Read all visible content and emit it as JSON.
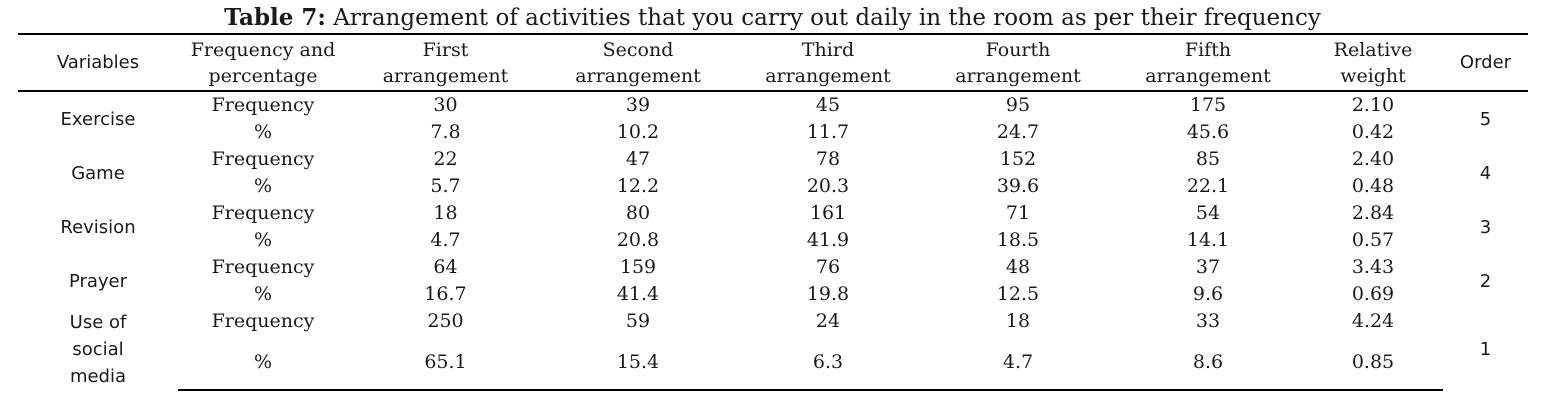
{
  "caption": {
    "label": "Table 7:",
    "text": "Arrangement of activities that you carry out daily in the room as per their frequency"
  },
  "headers": {
    "variables": "Variables",
    "freq_pct_1": "Frequency and",
    "freq_pct_2": "percentage",
    "first_1": "First",
    "first_2": "arrangement",
    "second_1": "Second",
    "second_2": "arrangement",
    "third_1": "Third",
    "third_2": "arrangement",
    "fourth_1": "Fourth",
    "fourth_2": "arrangement",
    "fifth_1": "Fifth",
    "fifth_2": "arrangement",
    "rw_1": "Relative",
    "rw_2": "weight",
    "order": "Order"
  },
  "rows": [
    {
      "variable": "Exercise",
      "freq_label": "Frequency",
      "pct_label": "%",
      "freq": [
        "30",
        "39",
        "45",
        "95",
        "175",
        "2.10"
      ],
      "pct": [
        "7.8",
        "10.2",
        "11.7",
        "24.7",
        "45.6",
        "0.42"
      ],
      "order": "5"
    },
    {
      "variable": "Game",
      "freq_label": "Frequency",
      "pct_label": "%",
      "freq": [
        "22",
        "47",
        "78",
        "152",
        "85",
        "2.40"
      ],
      "pct": [
        "5.7",
        "12.2",
        "20.3",
        "39.6",
        "22.1",
        "0.48"
      ],
      "order": "4"
    },
    {
      "variable": "Revision",
      "freq_label": "Frequency",
      "pct_label": "%",
      "freq": [
        "18",
        "80",
        "161",
        "71",
        "54",
        "2.84"
      ],
      "pct": [
        "4.7",
        "20.8",
        "41.9",
        "18.5",
        "14.1",
        "0.57"
      ],
      "order": "3"
    },
    {
      "variable": "Prayer",
      "freq_label": "Frequency",
      "pct_label": "%",
      "freq": [
        "64",
        "159",
        "76",
        "48",
        "37",
        "3.43"
      ],
      "pct": [
        "16.7",
        "41.4",
        "19.8",
        "12.5",
        "9.6",
        "0.69"
      ],
      "order": "2"
    },
    {
      "variable_lines": [
        "Use of",
        "social",
        "media"
      ],
      "freq_label": "Frequency",
      "pct_label": "%",
      "freq": [
        "250",
        "59",
        "24",
        "18",
        "33",
        "4.24"
      ],
      "pct": [
        "65.1",
        "15.4",
        "6.3",
        "4.7",
        "8.6",
        "0.85"
      ],
      "order": "1"
    }
  ]
}
